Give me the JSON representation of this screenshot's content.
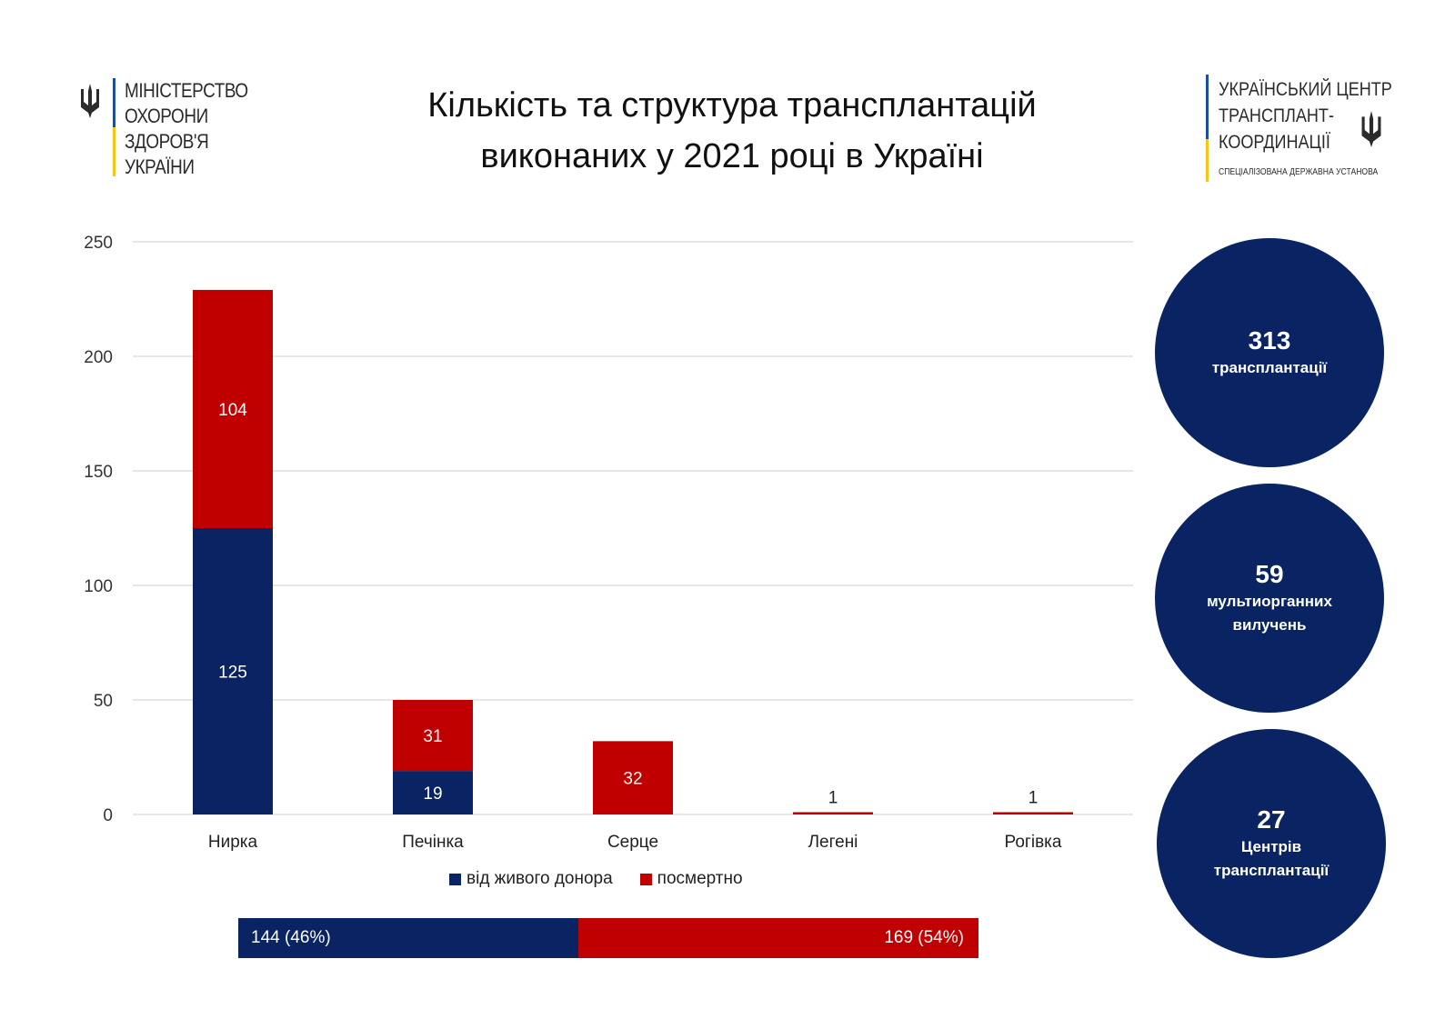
{
  "header": {
    "ministry": [
      "МІНІСТЕРСТВО",
      "ОХОРОНИ",
      "ЗДОРОВ'Я",
      "УКРАЇНИ"
    ],
    "center": [
      "УКРАЇНСЬКИЙ ЦЕНТР",
      "ТРАНСПЛАНТ-",
      "КООРДИНАЦІЇ"
    ],
    "center_sub": "СПЕЦІАЛІЗОВАНА ДЕРЖАВНА УСТАНОВА",
    "title_line1": "Кількість та структура трансплантацій",
    "title_line2": "виконаних у 2021 році в Україні"
  },
  "chart_data": {
    "type": "bar",
    "stacked": true,
    "categories": [
      "Нирка",
      "Печінка",
      "Серце",
      "Легені",
      "Рогівка"
    ],
    "series": [
      {
        "name": "від живого донора",
        "values": [
          125,
          19,
          0,
          0,
          0
        ],
        "color": "#0a2463"
      },
      {
        "name": "посмертно",
        "values": [
          104,
          31,
          32,
          1,
          1
        ],
        "color": "#c00000"
      }
    ],
    "ylim": [
      0,
      250
    ],
    "yticks": [
      0,
      50,
      100,
      150,
      200,
      250
    ],
    "grid": true,
    "legend_position": "bottom",
    "title": "Кількість та структура трансплантацій виконаних у 2021 році в Україні"
  },
  "summary_bar": {
    "live_label": "144 (46%)",
    "live_value": 144,
    "post_label": "169 (54%)",
    "post_value": 169
  },
  "stats": [
    {
      "number": "313",
      "label": "трансплантації"
    },
    {
      "number": "59",
      "label": "мультиорганних вилучень"
    },
    {
      "number": "27",
      "label": "Центрів трансплантації"
    }
  ],
  "colors": {
    "live": "#0a2463",
    "post": "#c00000",
    "circle": "#0a2463"
  }
}
